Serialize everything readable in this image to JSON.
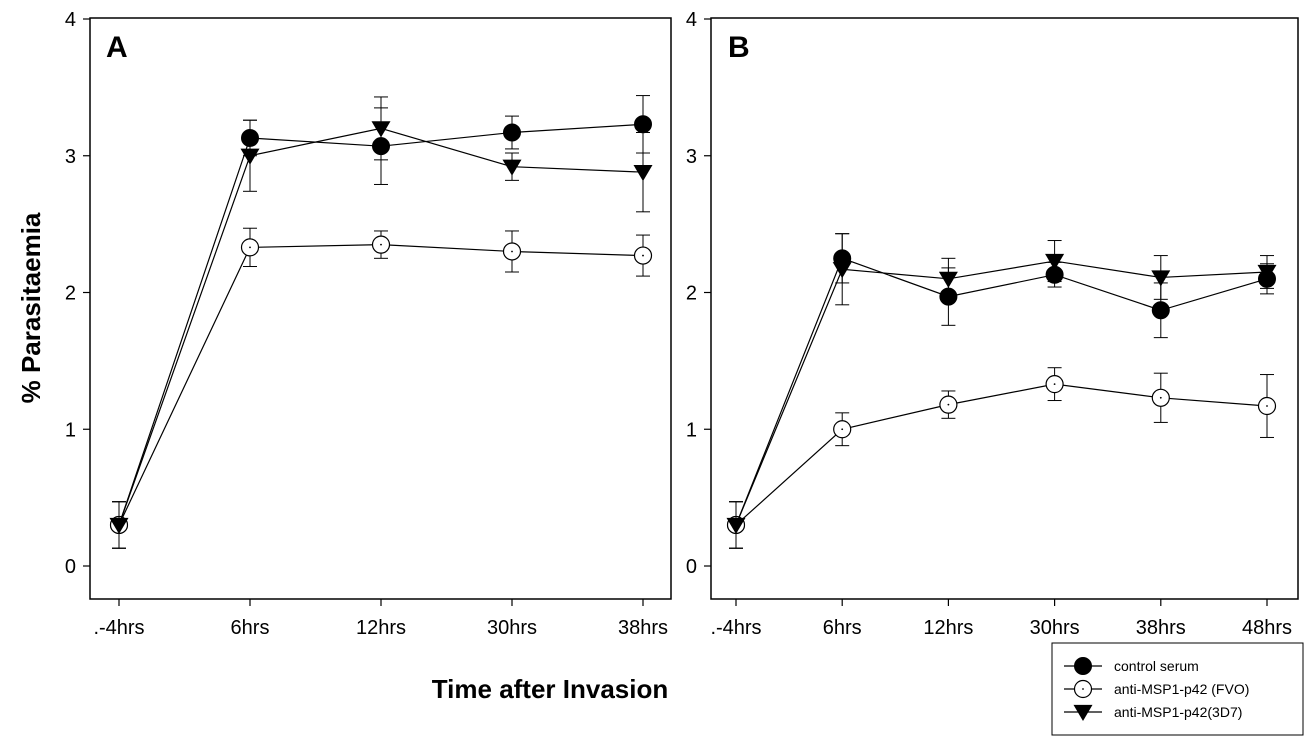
{
  "figure": {
    "ylabel": "% Parasitaemia",
    "xlabel": "Time after Invasion"
  },
  "legend": {
    "placement": "bottom-right",
    "items": [
      {
        "label": "control serum",
        "marker": "filled-circle"
      },
      {
        "label": "anti-MSP1-p42 (FVO)",
        "marker": "open-circle"
      },
      {
        "label": "anti-MSP1-p42(3D7)",
        "marker": "filled-triangle-down"
      }
    ]
  },
  "chart_data": [
    {
      "type": "line",
      "panel": "A",
      "categories": [
        ".-4hrs",
        "6hrs",
        "12hrs",
        "30hrs",
        "38hrs"
      ],
      "ylim": [
        0,
        4
      ],
      "yticks": [
        0,
        1,
        2,
        3,
        4
      ],
      "series": [
        {
          "name": "control serum",
          "marker": "filled-circle",
          "values": [
            0.3,
            3.13,
            3.07,
            3.17,
            3.23
          ],
          "errors": [
            0.17,
            0.13,
            0.28,
            0.12,
            0.21
          ]
        },
        {
          "name": "anti-MSP1-p42 (FVO)",
          "marker": "open-circle",
          "values": [
            0.3,
            2.33,
            2.35,
            2.3,
            2.27
          ],
          "errors": [
            0.17,
            0.14,
            0.1,
            0.15,
            0.15
          ]
        },
        {
          "name": "anti-MSP1-p42(3D7)",
          "marker": "filled-triangle-down",
          "values": [
            0.3,
            3.0,
            3.2,
            2.92,
            2.88
          ],
          "errors": [
            0.17,
            0.26,
            0.23,
            0.1,
            0.29
          ]
        }
      ]
    },
    {
      "type": "line",
      "panel": "B",
      "categories": [
        ".-4hrs",
        "6hrs",
        "12hrs",
        "30hrs",
        "38hrs",
        "48hrs"
      ],
      "ylim": [
        0,
        4
      ],
      "yticks": [
        0,
        1,
        2,
        3,
        4
      ],
      "series": [
        {
          "name": "control serum",
          "marker": "filled-circle",
          "values": [
            0.3,
            2.25,
            1.97,
            2.13,
            1.87,
            2.1
          ],
          "errors": [
            0.17,
            0.18,
            0.21,
            0.09,
            0.2,
            0.11
          ]
        },
        {
          "name": "anti-MSP1-p42 (FVO)",
          "marker": "open-circle",
          "values": [
            0.3,
            1.0,
            1.18,
            1.33,
            1.23,
            1.17
          ],
          "errors": [
            0.17,
            0.12,
            0.1,
            0.12,
            0.18,
            0.23
          ]
        },
        {
          "name": "anti-MSP1-p42(3D7)",
          "marker": "filled-triangle-down",
          "values": [
            0.3,
            2.17,
            2.1,
            2.23,
            2.11,
            2.15
          ],
          "errors": [
            0.17,
            0.26,
            0.15,
            0.15,
            0.16,
            0.12
          ]
        }
      ]
    }
  ]
}
